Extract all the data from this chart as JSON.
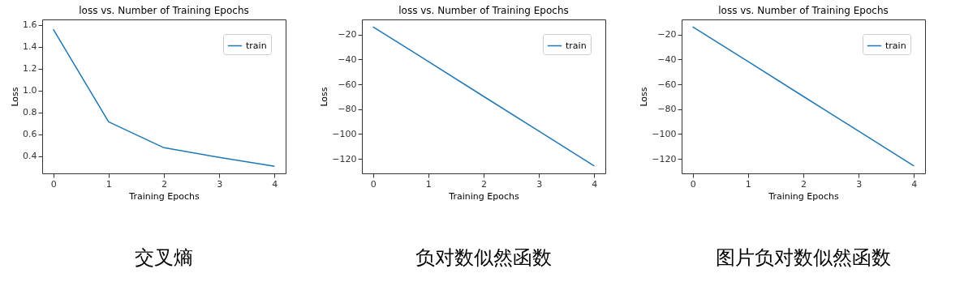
{
  "chart_data": [
    {
      "type": "line",
      "title": "loss vs. Number of Training Epochs",
      "xlabel": "Training Epochs",
      "ylabel": "Loss",
      "x": [
        0,
        1,
        2,
        3,
        4
      ],
      "xlim": [
        -0.2,
        4.2
      ],
      "xticks": [
        0,
        1,
        2,
        3,
        4
      ],
      "ylim": [
        0.244,
        1.649
      ],
      "yticks": [
        0.4,
        0.6,
        0.8,
        {
          "value": 1.0,
          "label": "1.0"
        },
        1.2,
        1.4,
        1.6
      ],
      "series": [
        {
          "name": "train",
          "color": "#1f77b4",
          "values": [
            1.56,
            0.715,
            0.478,
            0.39,
            0.308
          ]
        }
      ],
      "legend": "top right",
      "grid": false,
      "annotations": [
        "交叉熵"
      ]
    },
    {
      "type": "line",
      "title": "loss vs. Number of Training Epochs",
      "xlabel": "Training Epochs",
      "ylabel": "Loss",
      "x": [
        0,
        1,
        2,
        3,
        4
      ],
      "xlim": [
        -0.2,
        4.2
      ],
      "xticks": [
        0,
        1,
        2,
        3,
        4
      ],
      "ylim": [
        -131.7,
        -7.7
      ],
      "yticks": [
        -120,
        -100,
        -80,
        -60,
        -40,
        -20
      ],
      "series": [
        {
          "name": "train",
          "color": "#1f77b4",
          "values": [
            -13.6,
            -41.6,
            -69.7,
            -97.7,
            -125.8
          ]
        }
      ],
      "legend": "top right",
      "grid": false,
      "annotations": [
        "负对数似然函数"
      ]
    },
    {
      "type": "line",
      "title": "loss vs. Number of Training Epochs",
      "xlabel": "Training Epochs",
      "ylabel": "Loss",
      "x": [
        0,
        1,
        2,
        3,
        4
      ],
      "xlim": [
        -0.2,
        4.2
      ],
      "xticks": [
        0,
        1,
        2,
        3,
        4
      ],
      "ylim": [
        -131.7,
        -7.7
      ],
      "yticks": [
        -120,
        -100,
        -80,
        -60,
        -40,
        -20
      ],
      "series": [
        {
          "name": "train",
          "color": "#1f77b4",
          "values": [
            -13.6,
            -41.6,
            -69.7,
            -97.7,
            -125.8
          ]
        }
      ],
      "legend": "top right",
      "grid": false,
      "annotations": [
        "图片负对数似然函数"
      ]
    }
  ]
}
